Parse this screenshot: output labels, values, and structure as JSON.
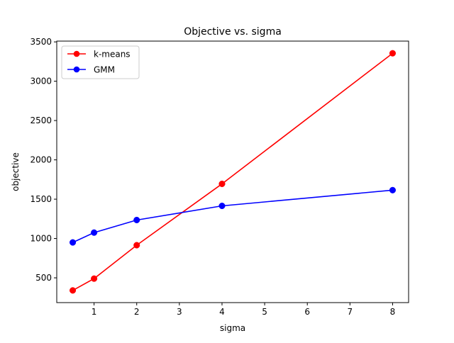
{
  "chart_data": {
    "type": "line",
    "title": "Objective vs. sigma",
    "xlabel": "sigma",
    "ylabel": "objective",
    "xlim": [
      0.125,
      8.375
    ],
    "ylim": [
      185,
      3510
    ],
    "xticks": [
      1,
      2,
      3,
      4,
      5,
      6,
      7,
      8
    ],
    "yticks": [
      500,
      1000,
      1500,
      2000,
      2500,
      3000,
      3500
    ],
    "x": [
      0.5,
      1,
      2,
      4,
      8
    ],
    "series": [
      {
        "name": "k-means",
        "color": "#ff0000",
        "values": [
          340,
          490,
          915,
          1695,
          3355
        ]
      },
      {
        "name": "GMM",
        "color": "#0000ff",
        "values": [
          950,
          1075,
          1235,
          1415,
          1615
        ]
      }
    ],
    "legend": "top-left",
    "grid": false
  }
}
